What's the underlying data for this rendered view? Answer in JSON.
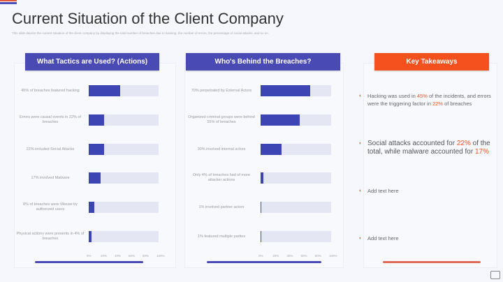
{
  "title": "Current Situation of the Client Company",
  "subtitle": "This slide depicts the current situation of the client company by displaying the total number of breaches due to hacking, the number of errors, the percentage of social attacks, and so on.",
  "chart_data": [
    {
      "type": "bar",
      "title": "What Tactics are Used? (Actions)",
      "orientation": "horizontal",
      "xlim": [
        0,
        100
      ],
      "ticks": [
        "0%",
        "20%",
        "40%",
        "60%",
        "80%",
        "100%"
      ],
      "categories": [
        "45% of breaches featured hacking",
        "Errors were causal events in 22% of breaches",
        "22% included Social Attacks",
        "17% involved Malware",
        "8% of breaches were Misuse by authorized users",
        "Physical actions were presents in 4% of breaches"
      ],
      "values": [
        45,
        22,
        22,
        17,
        8,
        4
      ]
    },
    {
      "type": "bar",
      "title": "Who's Behind the Breaches?",
      "orientation": "horizontal",
      "xlim": [
        0,
        100
      ],
      "ticks": [
        "0%",
        "20%",
        "40%",
        "60%",
        "80%",
        "100%"
      ],
      "categories": [
        "70% perpetrated by External Actors",
        "Organized criminal groups were behind 55% of breaches",
        "30% involved internal actors",
        "Only 4% of breaches had of more attacker actions",
        "1% involved partner actors",
        "1% featured multiple parties"
      ],
      "values": [
        70,
        55,
        30,
        4,
        1,
        1
      ]
    }
  ],
  "takeaways": {
    "title": "Key Takeaways",
    "items": [
      {
        "parts": [
          "Hacking was used in ",
          "45%",
          " of the incidents, and errors were the triggering factor in ",
          "22%",
          " of breaches"
        ]
      },
      {
        "parts": [
          "Social attacks accounted for ",
          "22%",
          " of the total, while malware accounted for ",
          "17%",
          ""
        ]
      },
      {
        "parts": [
          "Add text here"
        ]
      },
      {
        "parts": [
          "Add text here"
        ]
      }
    ]
  },
  "colors": {
    "accent": "#f4511e",
    "bar": "#3d45b5",
    "track": "#e4e6f3"
  }
}
